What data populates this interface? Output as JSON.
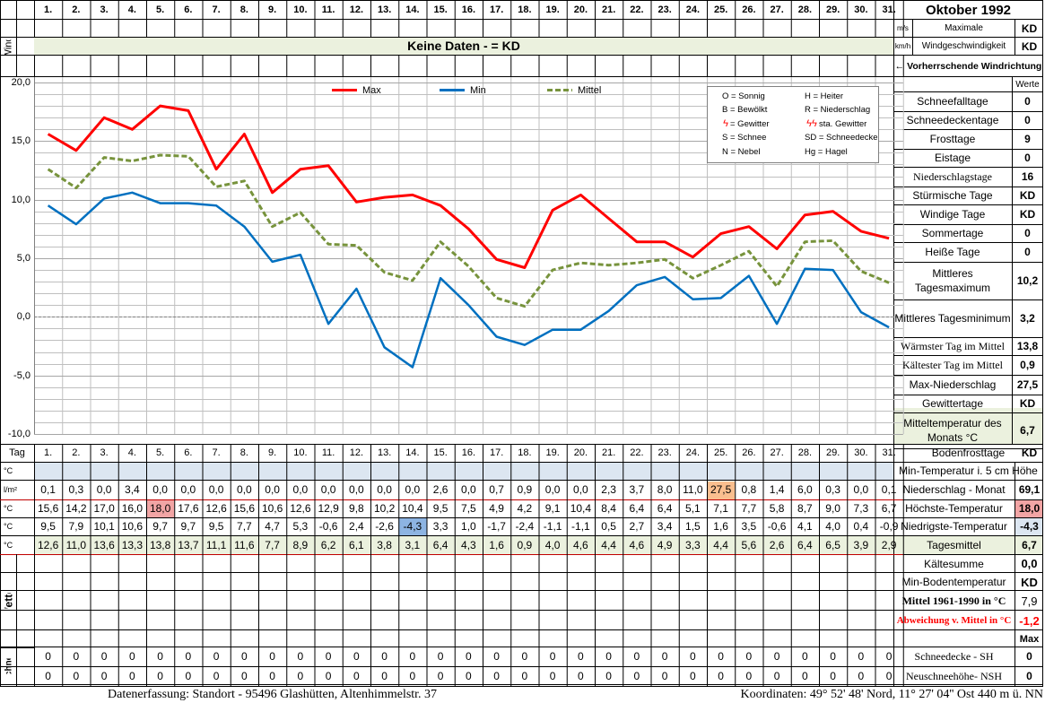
{
  "title": "Oktober 1992",
  "days": [
    "1.",
    "2.",
    "3.",
    "4.",
    "5.",
    "6.",
    "7.",
    "8.",
    "9.",
    "10.",
    "11.",
    "12.",
    "13.",
    "14.",
    "15.",
    "16.",
    "17.",
    "18.",
    "19.",
    "20.",
    "21.",
    "22.",
    "23.",
    "24.",
    "25.",
    "26.",
    "27.",
    "28.",
    "29.",
    "30.",
    "31."
  ],
  "wind": {
    "label": "Wind",
    "banner": "Keine Daten -  = KD",
    "unit_ms": "m/s",
    "unit_kmh": "km/h",
    "max_label_1": "Maximale",
    "max_label_2": "Windgeschwindigkeit",
    "max_ms": "KD",
    "max_kmh": "KD",
    "direction_label": "← Vorherrschende Windrichtung"
  },
  "chart_data": {
    "type": "line",
    "x": [
      1,
      2,
      3,
      4,
      5,
      6,
      7,
      8,
      9,
      10,
      11,
      12,
      13,
      14,
      15,
      16,
      17,
      18,
      19,
      20,
      21,
      22,
      23,
      24,
      25,
      26,
      27,
      28,
      29,
      30,
      31
    ],
    "ylim": [
      -10,
      20
    ],
    "yticks": [
      "20,0",
      "15,0",
      "10,0",
      "5,0",
      "0,0",
      "-5,0",
      "-10,0"
    ],
    "grid": true,
    "legend_position": "top",
    "series": [
      {
        "name": "Max",
        "color": "#ff0000",
        "values": [
          15.6,
          14.2,
          17.0,
          16.0,
          18.0,
          17.6,
          12.6,
          15.6,
          10.6,
          12.6,
          12.9,
          9.8,
          10.2,
          10.4,
          9.5,
          7.5,
          4.9,
          4.2,
          9.1,
          10.4,
          8.4,
          6.4,
          6.4,
          5.1,
          7.1,
          7.7,
          5.8,
          8.7,
          9.0,
          7.3,
          6.7
        ]
      },
      {
        "name": "Min",
        "color": "#0070c0",
        "values": [
          9.5,
          7.9,
          10.1,
          10.6,
          9.7,
          9.7,
          9.5,
          7.7,
          4.7,
          5.3,
          -0.6,
          2.4,
          -2.6,
          -4.3,
          3.3,
          1.0,
          -1.7,
          -2.4,
          -1.1,
          -1.1,
          0.5,
          2.7,
          3.4,
          1.5,
          1.6,
          3.5,
          -0.6,
          4.1,
          4.0,
          0.4,
          -0.9
        ]
      },
      {
        "name": "Mittel",
        "color": "#77933c",
        "values": [
          12.6,
          11.0,
          13.6,
          13.3,
          13.8,
          13.7,
          11.1,
          11.6,
          7.7,
          8.9,
          6.2,
          6.1,
          3.8,
          3.1,
          6.4,
          4.3,
          1.6,
          0.9,
          4.0,
          4.6,
          4.4,
          4.6,
          4.9,
          3.3,
          4.4,
          5.6,
          2.6,
          6.4,
          6.5,
          3.9,
          2.9
        ]
      }
    ]
  },
  "weather_legend": [
    [
      "O = Sonnig",
      "H = Heiter"
    ],
    [
      "B = Bewölkt",
      "R = Niederschlag"
    ],
    [
      "= Gewitter",
      "sta. Gewitter"
    ],
    [
      "S = Schnee",
      "SD = Schneedecke"
    ],
    [
      "N = Nebel",
      "Hg = Hagel"
    ]
  ],
  "stats": {
    "werte_label": "Werte",
    "items": [
      {
        "label": "Schneefalltage",
        "value": "0"
      },
      {
        "label": "Schneedeckentage",
        "value": "0"
      },
      {
        "label": "Frosttage",
        "value": "9"
      },
      {
        "label": "Eistage",
        "value": "0"
      },
      {
        "label": "Niederschlagstage",
        "value": "16"
      },
      {
        "label": "Stürmische Tage",
        "value": "KD"
      },
      {
        "label": "Windige Tage",
        "value": "KD"
      },
      {
        "label": "Sommertage",
        "value": "0"
      },
      {
        "label": "Heiße Tage",
        "value": "0"
      },
      {
        "label": "Mittleres Tagesmaximum",
        "value": "10,2"
      },
      {
        "label": "Mittleres Tagesminimum",
        "value": "3,2"
      },
      {
        "label": "Wärmster Tag im Mittel",
        "value": "13,8"
      },
      {
        "label": "Kältester Tag im Mittel",
        "value": "0,9"
      },
      {
        "label": "Max-Niederschlag",
        "value": "27,5"
      },
      {
        "label": "Gewittertage",
        "value": "KD"
      },
      {
        "label": "Mitteltemperatur des Monats °C",
        "value": "6,7"
      }
    ]
  },
  "table": {
    "tag_label": "Tag",
    "rows": [
      {
        "unit": "°C",
        "label": "Min-Temperatur i. 5 cm Höhe",
        "values": [
          "",
          "",
          "",
          "",
          "",
          "",
          "",
          "",
          "",
          "",
          "",
          "",
          "",
          "",
          "",
          "",
          "",
          "",
          "",
          "",
          "",
          "",
          "",
          "",
          "",
          "",
          "",
          "",
          "",
          "",
          ""
        ],
        "total": ""
      },
      {
        "unit": "l/m²",
        "label": "Niederschlag - Monat",
        "values": [
          "0,1",
          "0,3",
          "0,0",
          "3,4",
          "0,0",
          "0,0",
          "0,0",
          "0,0",
          "0,0",
          "0,0",
          "0,0",
          "0,0",
          "0,0",
          "0,0",
          "2,6",
          "0,0",
          "0,7",
          "0,9",
          "0,0",
          "0,0",
          "2,3",
          "3,7",
          "8,0",
          "11,0",
          "27,5",
          "0,8",
          "1,4",
          "6,0",
          "0,3",
          "0,0",
          "0,1"
        ],
        "total": "69,1"
      },
      {
        "unit": "°C",
        "label": "Höchste-Temperatur",
        "values": [
          "15,6",
          "14,2",
          "17,0",
          "16,0",
          "18,0",
          "17,6",
          "12,6",
          "15,6",
          "10,6",
          "12,6",
          "12,9",
          "9,8",
          "10,2",
          "10,4",
          "9,5",
          "7,5",
          "4,9",
          "4,2",
          "9,1",
          "10,4",
          "8,4",
          "6,4",
          "6,4",
          "5,1",
          "7,1",
          "7,7",
          "5,8",
          "8,7",
          "9,0",
          "7,3",
          "6,7"
        ],
        "total": "18,0"
      },
      {
        "unit": "°C",
        "label": "Niedrigste-Temperatur",
        "values": [
          "9,5",
          "7,9",
          "10,1",
          "10,6",
          "9,7",
          "9,7",
          "9,5",
          "7,7",
          "4,7",
          "5,3",
          "-0,6",
          "2,4",
          "-2,6",
          "-4,3",
          "3,3",
          "1,0",
          "-1,7",
          "-2,4",
          "-1,1",
          "-1,1",
          "0,5",
          "2,7",
          "3,4",
          "1,5",
          "1,6",
          "3,5",
          "-0,6",
          "4,1",
          "4,0",
          "0,4",
          "-0,9"
        ],
        "total": "-4,3"
      },
      {
        "unit": "°C",
        "label": "Tagesmittel",
        "values": [
          "12,6",
          "11,0",
          "13,6",
          "13,3",
          "13,8",
          "13,7",
          "11,1",
          "11,6",
          "7,7",
          "8,9",
          "6,2",
          "6,1",
          "3,8",
          "3,1",
          "6,4",
          "4,3",
          "1,6",
          "0,9",
          "4,0",
          "4,6",
          "4,4",
          "4,6",
          "4,9",
          "3,3",
          "4,4",
          "5,6",
          "2,6",
          "6,4",
          "6,5",
          "3,9",
          "2,9"
        ],
        "total": "6,7"
      }
    ]
  },
  "bodenfrosttage": {
    "label": "Bodenfrosttage",
    "value": "KD"
  },
  "wetter": {
    "label": "Wetter",
    "items": [
      {
        "label": "Kältesumme",
        "value": "0,0"
      },
      {
        "label": "Min-Bodentemperatur",
        "value": "KD"
      },
      {
        "label": "Mittel 1961-1990 in °C",
        "value": "7,9"
      },
      {
        "label": "Abweichung v. Mittel in °C",
        "value": "-1,2"
      }
    ],
    "max_label": "Max"
  },
  "schnee": {
    "label": "Schnee",
    "rows": [
      {
        "label": "Schneedecke -   SH",
        "values": [
          "0",
          "0",
          "0",
          "0",
          "0",
          "0",
          "0",
          "0",
          "0",
          "0",
          "0",
          "0",
          "0",
          "0",
          "0",
          "0",
          "0",
          "0",
          "0",
          "0",
          "0",
          "0",
          "0",
          "0",
          "0",
          "0",
          "0",
          "0",
          "0",
          "0",
          "0"
        ],
        "total": "0"
      },
      {
        "label": "Neuschneehöhe- NSH",
        "values": [
          "0",
          "0",
          "0",
          "0",
          "0",
          "0",
          "0",
          "0",
          "0",
          "0",
          "0",
          "0",
          "0",
          "0",
          "0",
          "0",
          "0",
          "0",
          "0",
          "0",
          "0",
          "0",
          "0",
          "0",
          "0",
          "0",
          "0",
          "0",
          "0",
          "0",
          "0"
        ],
        "total": "0"
      }
    ]
  },
  "footer": {
    "left": "Datenerfassung:  Standort -  95496  Glashütten, Altenhimmelstr. 37",
    "right": "Koordinaten:  49° 52' 48' Nord,  11° 27' 04'' Ost   440 m ü. NN"
  },
  "colors": {
    "green": "#ebf1de",
    "blue_light": "#dce6f1",
    "pink": "#f2a5a5",
    "orange": "#fabf8f",
    "blue_cell": "#8db4e2",
    "red_text": "#ff0000"
  }
}
